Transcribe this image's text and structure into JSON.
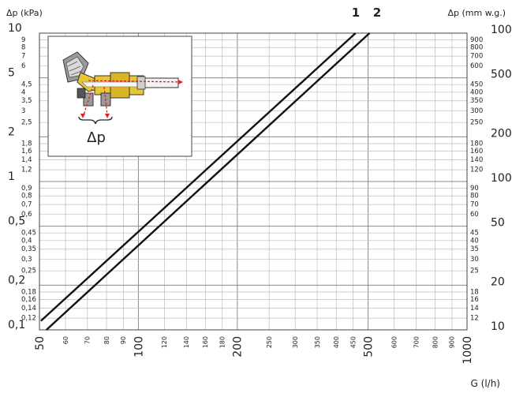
{
  "chart_data": {
    "type": "line",
    "xscale": "log",
    "yscale": "log",
    "xlim": [
      50,
      1000
    ],
    "ylim": [
      0.1,
      10
    ],
    "y2lim": [
      10,
      1000
    ],
    "xlabel": "G (l/h)",
    "ylabel": "Δp (kPa)",
    "y2label": "Δp (mm w.g.)",
    "x_major_ticks": [
      {
        "v": 50,
        "l": "50"
      },
      {
        "v": 100,
        "l": "100"
      },
      {
        "v": 200,
        "l": "200"
      },
      {
        "v": 500,
        "l": "500"
      },
      {
        "v": 1000,
        "l": "1000"
      }
    ],
    "x_minor_ticks": [
      {
        "v": 60,
        "l": "60"
      },
      {
        "v": 70,
        "l": "70"
      },
      {
        "v": 80,
        "l": "80"
      },
      {
        "v": 90,
        "l": "90"
      },
      {
        "v": 120,
        "l": "120"
      },
      {
        "v": 140,
        "l": "140"
      },
      {
        "v": 160,
        "l": "160"
      },
      {
        "v": 180,
        "l": "180"
      },
      {
        "v": 250,
        "l": "250"
      },
      {
        "v": 300,
        "l": "300"
      },
      {
        "v": 350,
        "l": "350"
      },
      {
        "v": 400,
        "l": "400"
      },
      {
        "v": 450,
        "l": "450"
      },
      {
        "v": 600,
        "l": "600"
      },
      {
        "v": 700,
        "l": "700"
      },
      {
        "v": 800,
        "l": "800"
      },
      {
        "v": 900,
        "l": "900"
      }
    ],
    "y_major_ticks": [
      {
        "v": 0.1,
        "l": "0,1"
      },
      {
        "v": 0.2,
        "l": "0,2"
      },
      {
        "v": 0.5,
        "l": "0,5"
      },
      {
        "v": 1,
        "l": "1"
      },
      {
        "v": 2,
        "l": "2"
      },
      {
        "v": 5,
        "l": "5"
      },
      {
        "v": 10,
        "l": "10"
      }
    ],
    "y_minor_ticks": [
      {
        "v": 0.12,
        "l": "0,12"
      },
      {
        "v": 0.14,
        "l": "0,14"
      },
      {
        "v": 0.16,
        "l": "0,16"
      },
      {
        "v": 0.18,
        "l": "0,18"
      },
      {
        "v": 0.25,
        "l": "0,25"
      },
      {
        "v": 0.3,
        "l": "0,3"
      },
      {
        "v": 0.35,
        "l": "0,35"
      },
      {
        "v": 0.4,
        "l": "0,4"
      },
      {
        "v": 0.45,
        "l": "0,45"
      },
      {
        "v": 0.6,
        "l": "0,6"
      },
      {
        "v": 0.7,
        "l": "0,7"
      },
      {
        "v": 0.8,
        "l": "0,8"
      },
      {
        "v": 0.9,
        "l": "0,9"
      },
      {
        "v": 1.2,
        "l": "1,2"
      },
      {
        "v": 1.4,
        "l": "1,4"
      },
      {
        "v": 1.6,
        "l": "1,6"
      },
      {
        "v": 1.8,
        "l": "1,8"
      },
      {
        "v": 2.5,
        "l": "2,5"
      },
      {
        "v": 3,
        "l": "3"
      },
      {
        "v": 3.5,
        "l": "3,5"
      },
      {
        "v": 4,
        "l": "4"
      },
      {
        "v": 4.5,
        "l": "4,5"
      },
      {
        "v": 6,
        "l": "6"
      },
      {
        "v": 7,
        "l": "7"
      },
      {
        "v": 8,
        "l": "8"
      },
      {
        "v": 9,
        "l": "9"
      }
    ],
    "y2_major_ticks": [
      {
        "v": 10,
        "l": "10"
      },
      {
        "v": 20,
        "l": "20"
      },
      {
        "v": 50,
        "l": "50"
      },
      {
        "v": 100,
        "l": "100"
      },
      {
        "v": 200,
        "l": "200"
      },
      {
        "v": 500,
        "l": "500"
      },
      {
        "v": 1000,
        "l": "1000"
      }
    ],
    "y2_minor_ticks": [
      {
        "v": 12,
        "l": "12"
      },
      {
        "v": 14,
        "l": "14"
      },
      {
        "v": 16,
        "l": "16"
      },
      {
        "v": 18,
        "l": "18"
      },
      {
        "v": 25,
        "l": "25"
      },
      {
        "v": 30,
        "l": "30"
      },
      {
        "v": 35,
        "l": "35"
      },
      {
        "v": 40,
        "l": "40"
      },
      {
        "v": 45,
        "l": "45"
      },
      {
        "v": 60,
        "l": "60"
      },
      {
        "v": 70,
        "l": "70"
      },
      {
        "v": 80,
        "l": "80"
      },
      {
        "v": 90,
        "l": "90"
      },
      {
        "v": 120,
        "l": "120"
      },
      {
        "v": 140,
        "l": "140"
      },
      {
        "v": 160,
        "l": "160"
      },
      {
        "v": 180,
        "l": "180"
      },
      {
        "v": 250,
        "l": "250"
      },
      {
        "v": 300,
        "l": "300"
      },
      {
        "v": 350,
        "l": "350"
      },
      {
        "v": 400,
        "l": "400"
      },
      {
        "v": 450,
        "l": "450"
      },
      {
        "v": 600,
        "l": "600"
      },
      {
        "v": 700,
        "l": "700"
      },
      {
        "v": 800,
        "l": "800"
      },
      {
        "v": 900,
        "l": "900"
      }
    ],
    "series": [
      {
        "name": "1",
        "points": [
          [
            50.5,
            0.115
          ],
          [
            458,
            10
          ]
        ]
      },
      {
        "name": "2",
        "points": [
          [
            52.5,
            0.1
          ],
          [
            505,
            10
          ]
        ]
      }
    ],
    "grid": true,
    "inset": {
      "label": "Δp"
    },
    "colors": {
      "line": "#111111",
      "grid": "#bdbdbd",
      "arrow": "#e0202a",
      "valve_body": "#e8c832"
    }
  }
}
